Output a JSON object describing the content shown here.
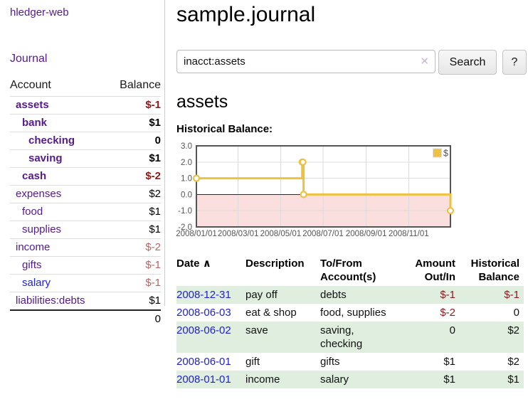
{
  "colors": {
    "link_visited_purple": "#551a8b",
    "link_blue": "#2222dd",
    "negative_red": "#8b1a1a",
    "negative_muted_red": "#b06868",
    "row_highlight_green": "#dfeedf",
    "chart_line_gold": "#edc240",
    "chart_negative_fill": "#fbdede",
    "chart_zero_line": "#8b0000",
    "chart_axis_gray": "#545454"
  },
  "sidebar": {
    "app_title": "hledger-web",
    "journal_link": "Journal",
    "accounts_table": {
      "account_header": "Account",
      "balance_header": "Balance",
      "rows": [
        {
          "label": "assets",
          "balance": "$-1",
          "indent": 1,
          "bold": true,
          "unvisited": false
        },
        {
          "label": "bank",
          "balance": "$1",
          "indent": 2,
          "bold": true,
          "unvisited": false
        },
        {
          "label": "checking",
          "balance": "0",
          "indent": 3,
          "bold": true,
          "unvisited": false
        },
        {
          "label": "saving",
          "balance": "$1",
          "indent": 3,
          "bold": true,
          "unvisited": false
        },
        {
          "label": "cash",
          "balance": "$-2",
          "indent": 2,
          "bold": true,
          "unvisited": false
        },
        {
          "label": "expenses",
          "balance": "$2",
          "indent": 1,
          "bold": false,
          "unvisited": false
        },
        {
          "label": "food",
          "balance": "$1",
          "indent": 2,
          "bold": false,
          "unvisited": false
        },
        {
          "label": "supplies",
          "balance": "$1",
          "indent": 2,
          "bold": false,
          "unvisited": false
        },
        {
          "label": "income",
          "balance": "$-2",
          "indent": 1,
          "bold": false,
          "unvisited": false
        },
        {
          "label": "gifts",
          "balance": "$-1",
          "indent": 2,
          "bold": false,
          "unvisited": false
        },
        {
          "label": "salary",
          "balance": "$-1",
          "indent": 2,
          "bold": false,
          "unvisited": true
        },
        {
          "label": "liabilities:debts",
          "balance": "$1",
          "indent": 1,
          "bold": false,
          "unvisited": false
        }
      ],
      "total": "0"
    }
  },
  "header": {
    "title": "sample.journal"
  },
  "search": {
    "value": "inacct:assets",
    "clear_icon": "✕",
    "search_button": "Search",
    "help_button": "?"
  },
  "account_page": {
    "title": "assets",
    "chart_label": "Historical Balance:"
  },
  "chart_data": {
    "type": "line",
    "mode": "steps",
    "title": "Historical Balance",
    "legend": [
      {
        "label": "$",
        "color": "#edc240"
      }
    ],
    "legend_position": "top-right",
    "grid": true,
    "xlim": [
      "2008-01-01",
      "2008-12-31"
    ],
    "ylim": [
      -2.0,
      3.0
    ],
    "y_ticks": [
      "3.0",
      "2.0",
      "1.0",
      "0.0",
      "-1.0",
      "-2.0"
    ],
    "y_tick_values": [
      3,
      2,
      1,
      0,
      -1,
      -2
    ],
    "x_ticks": [
      "2008/01/01",
      "2008/03/01",
      "2008/05/01",
      "2008/07/01",
      "2008/09/01",
      "2008/11/01"
    ],
    "series": [
      {
        "name": "$",
        "color": "#edc240",
        "points": [
          [
            "2008-01-01",
            1
          ],
          [
            "2008-06-01",
            2
          ],
          [
            "2008-06-02",
            2
          ],
          [
            "2008-06-03",
            0
          ],
          [
            "2008-12-31",
            -1
          ]
        ]
      }
    ]
  },
  "register_table": {
    "date_header": "Date",
    "sort_arrow": "∧",
    "headers": [
      "Description",
      "To/From Account(s)",
      "Amount Out/In",
      "Historical Balance"
    ],
    "rows": [
      {
        "date": "2008-12-31",
        "description": "pay off",
        "accounts": "debts",
        "amount": "$-1",
        "balance": "$-1"
      },
      {
        "date": "2008-06-03",
        "description": "eat & shop",
        "accounts": "food, supplies",
        "amount": "$-2",
        "balance": "0"
      },
      {
        "date": "2008-06-02",
        "description": "save",
        "accounts": "saving,\nchecking",
        "amount": "0",
        "balance": "$2"
      },
      {
        "date": "2008-06-01",
        "description": "gift",
        "accounts": "gifts",
        "amount": "$1",
        "balance": "$2"
      },
      {
        "date": "2008-01-01",
        "description": "income",
        "accounts": "salary",
        "amount": "$1",
        "balance": "$1"
      }
    ]
  }
}
